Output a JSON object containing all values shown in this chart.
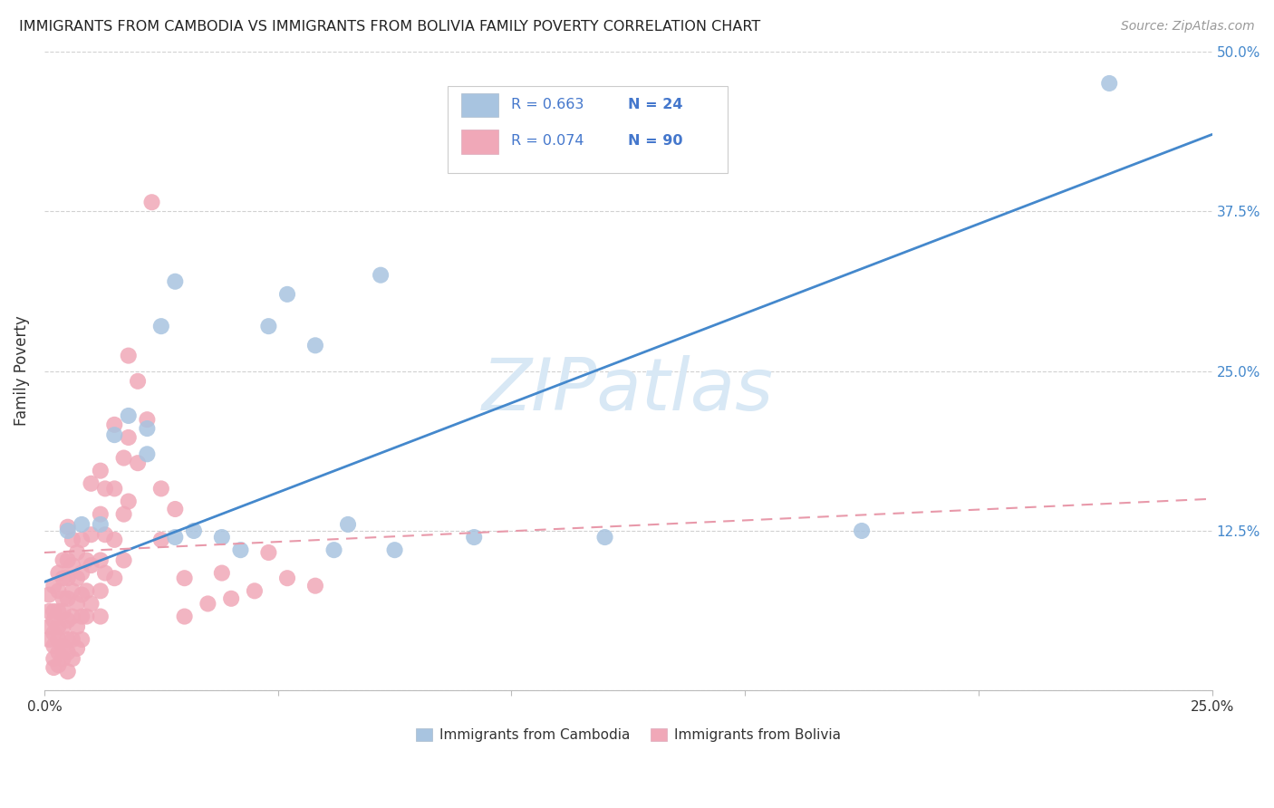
{
  "title": "IMMIGRANTS FROM CAMBODIA VS IMMIGRANTS FROM BOLIVIA FAMILY POVERTY CORRELATION CHART",
  "source": "Source: ZipAtlas.com",
  "ylabel": "Family Poverty",
  "xlim": [
    0.0,
    0.25
  ],
  "ylim": [
    0.0,
    0.5
  ],
  "cambodia_color": "#a8c4e0",
  "bolivia_color": "#f0a8b8",
  "cambodia_line_color": "#4488cc",
  "bolivia_line_color": "#e899aa",
  "grid_color": "#cccccc",
  "watermark_color": "#d8e8f5",
  "background_color": "#ffffff",
  "legend_text_color": "#4477cc",
  "legend_r_prefix_color": "#333333",
  "cambodia_points": [
    [
      0.005,
      0.125
    ],
    [
      0.008,
      0.13
    ],
    [
      0.012,
      0.13
    ],
    [
      0.015,
      0.2
    ],
    [
      0.018,
      0.215
    ],
    [
      0.022,
      0.185
    ],
    [
      0.022,
      0.205
    ],
    [
      0.025,
      0.285
    ],
    [
      0.028,
      0.32
    ],
    [
      0.028,
      0.12
    ],
    [
      0.032,
      0.125
    ],
    [
      0.038,
      0.12
    ],
    [
      0.042,
      0.11
    ],
    [
      0.048,
      0.285
    ],
    [
      0.052,
      0.31
    ],
    [
      0.058,
      0.27
    ],
    [
      0.062,
      0.11
    ],
    [
      0.065,
      0.13
    ],
    [
      0.072,
      0.325
    ],
    [
      0.075,
      0.11
    ],
    [
      0.092,
      0.12
    ],
    [
      0.12,
      0.12
    ],
    [
      0.175,
      0.125
    ],
    [
      0.228,
      0.475
    ]
  ],
  "bolivia_points": [
    [
      0.001,
      0.075
    ],
    [
      0.001,
      0.062
    ],
    [
      0.001,
      0.05
    ],
    [
      0.001,
      0.04
    ],
    [
      0.002,
      0.082
    ],
    [
      0.002,
      0.062
    ],
    [
      0.002,
      0.055
    ],
    [
      0.002,
      0.045
    ],
    [
      0.002,
      0.035
    ],
    [
      0.002,
      0.025
    ],
    [
      0.002,
      0.018
    ],
    [
      0.003,
      0.092
    ],
    [
      0.003,
      0.078
    ],
    [
      0.003,
      0.062
    ],
    [
      0.003,
      0.05
    ],
    [
      0.003,
      0.04
    ],
    [
      0.003,
      0.03
    ],
    [
      0.003,
      0.02
    ],
    [
      0.004,
      0.102
    ],
    [
      0.004,
      0.088
    ],
    [
      0.004,
      0.072
    ],
    [
      0.004,
      0.062
    ],
    [
      0.004,
      0.05
    ],
    [
      0.004,
      0.035
    ],
    [
      0.004,
      0.025
    ],
    [
      0.005,
      0.128
    ],
    [
      0.005,
      0.102
    ],
    [
      0.005,
      0.088
    ],
    [
      0.005,
      0.072
    ],
    [
      0.005,
      0.055
    ],
    [
      0.005,
      0.04
    ],
    [
      0.005,
      0.03
    ],
    [
      0.005,
      0.015
    ],
    [
      0.006,
      0.118
    ],
    [
      0.006,
      0.098
    ],
    [
      0.006,
      0.078
    ],
    [
      0.006,
      0.058
    ],
    [
      0.006,
      0.04
    ],
    [
      0.006,
      0.025
    ],
    [
      0.007,
      0.108
    ],
    [
      0.007,
      0.088
    ],
    [
      0.007,
      0.068
    ],
    [
      0.007,
      0.05
    ],
    [
      0.007,
      0.033
    ],
    [
      0.008,
      0.118
    ],
    [
      0.008,
      0.092
    ],
    [
      0.008,
      0.075
    ],
    [
      0.008,
      0.058
    ],
    [
      0.008,
      0.04
    ],
    [
      0.009,
      0.102
    ],
    [
      0.009,
      0.078
    ],
    [
      0.009,
      0.058
    ],
    [
      0.01,
      0.162
    ],
    [
      0.01,
      0.122
    ],
    [
      0.01,
      0.098
    ],
    [
      0.01,
      0.068
    ],
    [
      0.012,
      0.172
    ],
    [
      0.012,
      0.138
    ],
    [
      0.012,
      0.102
    ],
    [
      0.012,
      0.078
    ],
    [
      0.012,
      0.058
    ],
    [
      0.013,
      0.158
    ],
    [
      0.013,
      0.122
    ],
    [
      0.013,
      0.092
    ],
    [
      0.015,
      0.208
    ],
    [
      0.015,
      0.158
    ],
    [
      0.015,
      0.118
    ],
    [
      0.015,
      0.088
    ],
    [
      0.017,
      0.182
    ],
    [
      0.017,
      0.138
    ],
    [
      0.017,
      0.102
    ],
    [
      0.018,
      0.262
    ],
    [
      0.018,
      0.198
    ],
    [
      0.018,
      0.148
    ],
    [
      0.02,
      0.242
    ],
    [
      0.02,
      0.178
    ],
    [
      0.022,
      0.212
    ],
    [
      0.023,
      0.382
    ],
    [
      0.025,
      0.158
    ],
    [
      0.025,
      0.118
    ],
    [
      0.028,
      0.142
    ],
    [
      0.03,
      0.088
    ],
    [
      0.03,
      0.058
    ],
    [
      0.035,
      0.068
    ],
    [
      0.038,
      0.092
    ],
    [
      0.04,
      0.072
    ],
    [
      0.045,
      0.078
    ],
    [
      0.048,
      0.108
    ],
    [
      0.052,
      0.088
    ],
    [
      0.058,
      0.082
    ]
  ],
  "cambodia_line": {
    "x": [
      0.0,
      0.25
    ],
    "y": [
      0.085,
      0.435
    ]
  },
  "bolivia_line": {
    "x": [
      0.0,
      0.25
    ],
    "y": [
      0.108,
      0.15
    ]
  },
  "x_ticks": [
    0.0,
    0.05,
    0.1,
    0.15,
    0.2,
    0.25
  ],
  "y_ticks_right": [
    0.125,
    0.25,
    0.375,
    0.5
  ]
}
